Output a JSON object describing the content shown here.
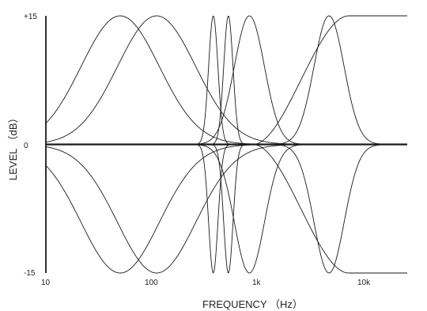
{
  "chart_data": {
    "type": "line",
    "xscale": "log",
    "xlim": [
      10,
      25000
    ],
    "ylim": [
      -15,
      15
    ],
    "xlabel": "FREQUENCY （Hz）",
    "ylabel": "LEVEL （dB）",
    "x_ticks": [
      "10",
      "100",
      "1k",
      "10k"
    ],
    "x_tick_values": [
      10,
      100,
      1000,
      10000
    ],
    "y_ticks": [
      "+15",
      "0",
      "-15"
    ],
    "y_tick_values": [
      15,
      0,
      -15
    ],
    "grid": false,
    "legend": "none",
    "series": [
      {
        "kind": "peak",
        "fc": 50,
        "gain": 15,
        "width": 0.52
      },
      {
        "kind": "peak",
        "fc": 50,
        "gain": -15,
        "width": 0.52
      },
      {
        "kind": "peak",
        "fc": 110,
        "gain": 15,
        "width": 0.52
      },
      {
        "kind": "peak",
        "fc": 110,
        "gain": -15,
        "width": 0.52
      },
      {
        "kind": "peak",
        "fc": 375,
        "gain": 15,
        "width": 0.062
      },
      {
        "kind": "peak",
        "fc": 375,
        "gain": -15,
        "width": 0.062
      },
      {
        "kind": "peak",
        "fc": 520,
        "gain": 15,
        "width": 0.062
      },
      {
        "kind": "peak",
        "fc": 520,
        "gain": -15,
        "width": 0.062
      },
      {
        "kind": "peak",
        "fc": 820,
        "gain": 15,
        "width": 0.2
      },
      {
        "kind": "peak",
        "fc": 820,
        "gain": -15,
        "width": 0.2
      },
      {
        "kind": "peak",
        "fc": 4600,
        "gain": 15,
        "width": 0.2
      },
      {
        "kind": "peak",
        "fc": 4600,
        "gain": -15,
        "width": 0.2
      },
      {
        "kind": "shelf",
        "fc": 2500,
        "gain": 15,
        "width": 0.45
      },
      {
        "kind": "shelf",
        "fc": 2500,
        "gain": -15,
        "width": 0.45
      }
    ]
  }
}
